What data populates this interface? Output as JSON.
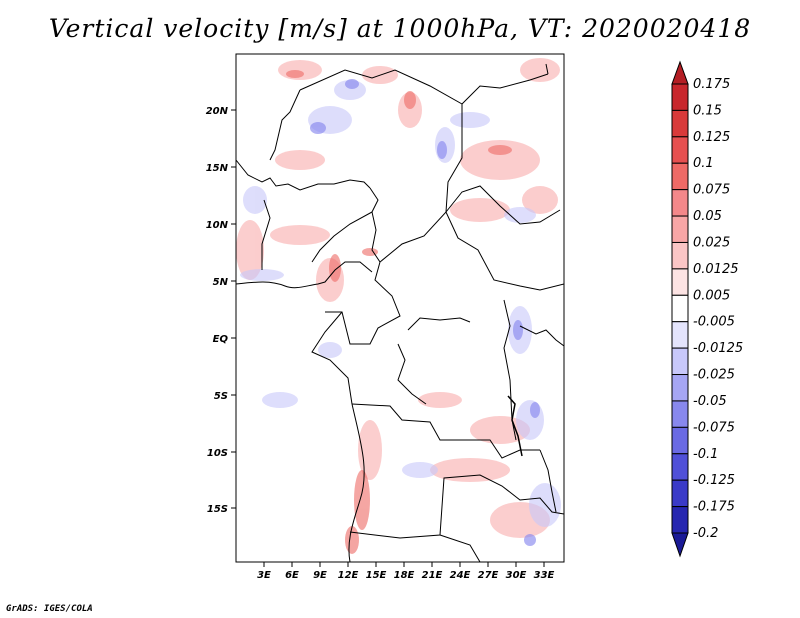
{
  "title": "Vertical velocity [m/s] at 1000hPa, VT: 2020020418",
  "footer": "GrADS: IGES/COLA",
  "map": {
    "variable": "Vertical velocity",
    "units": "m/s",
    "level": "1000hPa",
    "valid_time": "2020020418",
    "lat_labels": [
      "20N",
      "15N",
      "10N",
      "5N",
      "EQ",
      "5S",
      "10S",
      "15S"
    ],
    "lon_labels": [
      "3E",
      "6E",
      "9E",
      "12E",
      "15E",
      "18E",
      "21E",
      "24E",
      "27E",
      "30E",
      "33E"
    ]
  },
  "colorbar": {
    "labels": [
      "0.175",
      "0.15",
      "0.125",
      "0.1",
      "0.075",
      "0.05",
      "0.025",
      "0.0125",
      "0.005",
      "-0.005",
      "-0.0125",
      "-0.025",
      "-0.05",
      "-0.075",
      "-0.1",
      "-0.125",
      "-0.175",
      "-0.2"
    ],
    "colors": [
      "#b41e24",
      "#c8262c",
      "#d83a3a",
      "#e65050",
      "#ee6a66",
      "#f4888a",
      "#f8a6a6",
      "#fbc6c6",
      "#fde4e4",
      "#ffffff",
      "#e4e4fc",
      "#c8c8fa",
      "#a6a6f4",
      "#8888ee",
      "#6a6ae4",
      "#5050d8",
      "#3a3ac8",
      "#2626b0",
      "#1a1a96"
    ]
  }
}
